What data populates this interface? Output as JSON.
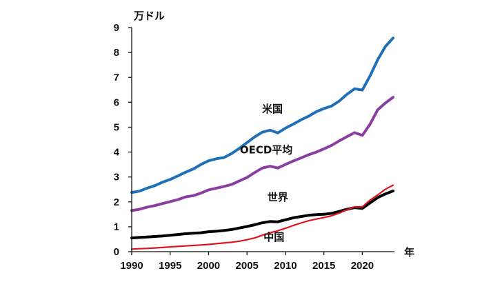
{
  "chart_data": {
    "type": "line",
    "title": "",
    "ylabel": "万ドル",
    "xlabel": "年",
    "ylim": [
      0,
      9
    ],
    "xlim": [
      1990,
      2024
    ],
    "yticks": [
      "0",
      "1",
      "2",
      "3",
      "4",
      "5",
      "6",
      "7",
      "8",
      "9"
    ],
    "xticks": [
      "1990",
      "1995",
      "2000",
      "2005",
      "2010",
      "2015",
      "2020"
    ],
    "x": [
      1990,
      1991,
      1992,
      1993,
      1994,
      1995,
      1996,
      1997,
      1998,
      1999,
      2000,
      2001,
      2002,
      2003,
      2004,
      2005,
      2006,
      2007,
      2008,
      2009,
      2010,
      2011,
      2012,
      2013,
      2014,
      2015,
      2016,
      2017,
      2018,
      2019,
      2020,
      2021,
      2022,
      2023,
      2024
    ],
    "series": [
      {
        "name": "米国",
        "label": "米国",
        "color": "#2070b8",
        "values": [
          2.38,
          2.43,
          2.55,
          2.65,
          2.79,
          2.9,
          3.04,
          3.19,
          3.32,
          3.5,
          3.65,
          3.73,
          3.78,
          3.94,
          4.15,
          4.38,
          4.61,
          4.8,
          4.88,
          4.77,
          4.96,
          5.12,
          5.29,
          5.44,
          5.62,
          5.75,
          5.85,
          6.05,
          6.32,
          6.54,
          6.49,
          7.06,
          7.71,
          8.24,
          8.58
        ]
      },
      {
        "name": "OECD平均",
        "label": "OECD平均",
        "color": "#8a3fa0",
        "values": [
          1.65,
          1.7,
          1.79,
          1.85,
          1.93,
          2.01,
          2.09,
          2.2,
          2.25,
          2.35,
          2.48,
          2.55,
          2.62,
          2.7,
          2.84,
          2.98,
          3.18,
          3.36,
          3.43,
          3.36,
          3.5,
          3.64,
          3.76,
          3.89,
          4.0,
          4.13,
          4.27,
          4.45,
          4.62,
          4.78,
          4.67,
          5.12,
          5.7,
          5.97,
          6.2
        ]
      },
      {
        "name": "世界",
        "label": "世界",
        "color": "#000000",
        "values": [
          0.55,
          0.57,
          0.59,
          0.61,
          0.63,
          0.66,
          0.69,
          0.72,
          0.74,
          0.76,
          0.8,
          0.82,
          0.85,
          0.89,
          0.95,
          1.01,
          1.08,
          1.16,
          1.21,
          1.2,
          1.28,
          1.36,
          1.41,
          1.46,
          1.49,
          1.5,
          1.54,
          1.62,
          1.7,
          1.77,
          1.74,
          1.96,
          2.17,
          2.32,
          2.44
        ]
      },
      {
        "name": "中国",
        "label": "中国",
        "color": "#e0141e",
        "values": [
          0.1,
          0.12,
          0.13,
          0.15,
          0.17,
          0.19,
          0.21,
          0.23,
          0.25,
          0.27,
          0.29,
          0.32,
          0.35,
          0.38,
          0.42,
          0.48,
          0.55,
          0.66,
          0.76,
          0.84,
          0.94,
          1.05,
          1.15,
          1.24,
          1.31,
          1.37,
          1.44,
          1.55,
          1.68,
          1.8,
          1.8,
          2.07,
          2.28,
          2.51,
          2.67
        ]
      }
    ]
  }
}
